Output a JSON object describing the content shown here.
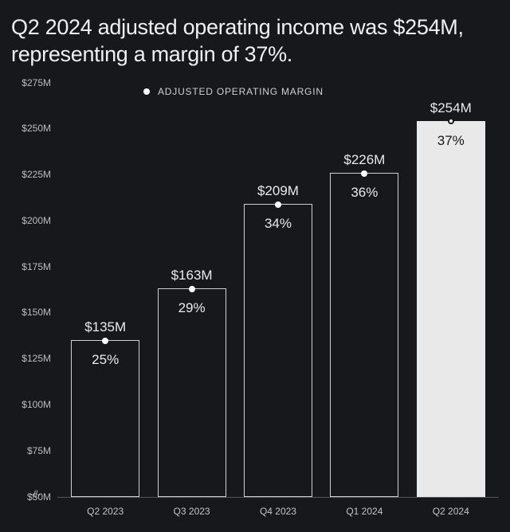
{
  "title": "Q2 2024 adjusted operating income was $254M, representing a margin of 37%.",
  "legend": {
    "label": "ADJUSTED OPERATING MARGIN",
    "dot_color": "#ffffff"
  },
  "chart": {
    "type": "bar",
    "background_color": "#16181c",
    "bar_border_color": "#cfcfcf",
    "highlight_fill": "#e9e9e9",
    "text_color": "#eaeaea",
    "axis_color": "#555555",
    "y": {
      "min": 50,
      "max": 275,
      "step": 25,
      "ticks": [
        {
          "v": 275,
          "label": "$275M"
        },
        {
          "v": 250,
          "label": "$250M"
        },
        {
          "v": 225,
          "label": "$225M"
        },
        {
          "v": 200,
          "label": "$200M"
        },
        {
          "v": 175,
          "label": "$175M"
        },
        {
          "v": 150,
          "label": "$150M"
        },
        {
          "v": 125,
          "label": "$125M"
        },
        {
          "v": 100,
          "label": "$100M"
        },
        {
          "v": 75,
          "label": "$75M"
        },
        {
          "v": 50,
          "label": "$50M"
        }
      ],
      "axis_break_label": "-//-"
    },
    "series": [
      {
        "category": "Q2 2023",
        "value": 135,
        "value_label": "$135M",
        "margin_label": "25%",
        "highlight": false
      },
      {
        "category": "Q3 2023",
        "value": 163,
        "value_label": "$163M",
        "margin_label": "29%",
        "highlight": false
      },
      {
        "category": "Q4 2023",
        "value": 209,
        "value_label": "$209M",
        "margin_label": "34%",
        "highlight": false
      },
      {
        "category": "Q1 2024",
        "value": 226,
        "value_label": "$226M",
        "margin_label": "36%",
        "highlight": false
      },
      {
        "category": "Q2 2024",
        "value": 254,
        "value_label": "$254M",
        "margin_label": "37%",
        "highlight": true
      }
    ]
  }
}
